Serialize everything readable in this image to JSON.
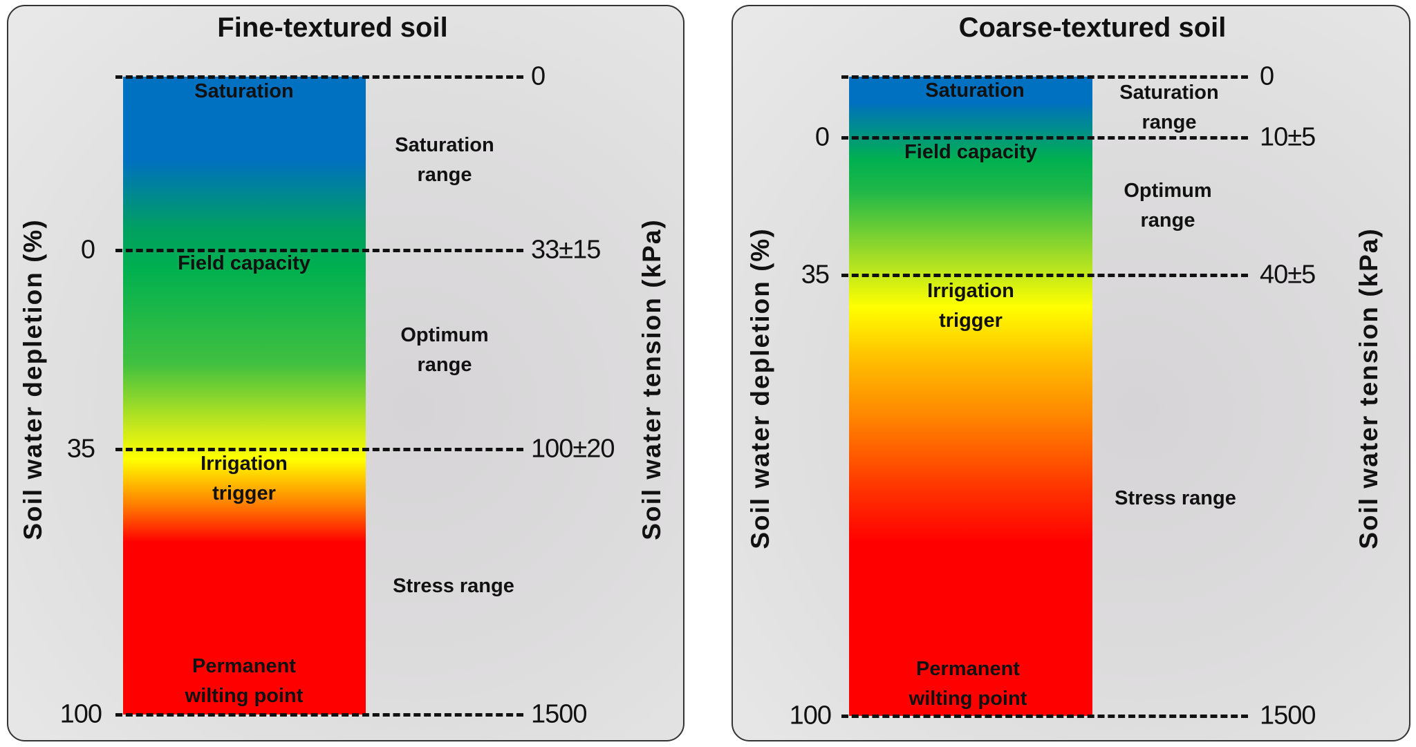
{
  "panels": [
    {
      "title": "Fine-textured soil",
      "left_axis_title": "Soil water depletion (%)",
      "right_axis_title": "Soil water tension (kPa)",
      "levels": [
        {
          "depletion": "",
          "tension": "0"
        },
        {
          "depletion": "0",
          "tension": "33±15"
        },
        {
          "depletion": "35",
          "tension": "100±20"
        },
        {
          "depletion": "100",
          "tension": "1500"
        }
      ],
      "bar_labels": {
        "saturation": "Saturation",
        "field_capacity": "Field capacity",
        "irrigation_1": "Irrigation",
        "irrigation_2": "trigger",
        "pwp_1": "Permanent",
        "pwp_2": "wilting point"
      },
      "range_labels": {
        "saturation_1": "Saturation",
        "saturation_2": "range",
        "optimum_1": "Optimum",
        "optimum_2": "range",
        "stress": "Stress range"
      }
    },
    {
      "title": "Coarse-textured soil",
      "left_axis_title": "Soil water depletion (%)",
      "right_axis_title": "Soil water tension (kPa)",
      "levels": [
        {
          "depletion": "",
          "tension": "0"
        },
        {
          "depletion": "0",
          "tension": "10±5"
        },
        {
          "depletion": "35",
          "tension": "40±5"
        },
        {
          "depletion": "100",
          "tension": "1500"
        }
      ],
      "bar_labels": {
        "saturation": "Saturation",
        "field_capacity": "Field capacity",
        "irrigation_1": "Irrigation",
        "irrigation_2": "trigger",
        "pwp_1": "Permanent",
        "pwp_2": "wilting point"
      },
      "range_labels": {
        "saturation_1": "Saturation",
        "saturation_2": "range",
        "optimum_1": "Optimum",
        "optimum_2": "range",
        "stress": "Stress range"
      }
    }
  ],
  "colors": {
    "saturation": "#0070c0",
    "field_capacity": "#00b050",
    "irrigation_trigger": "#ffff00",
    "wilting_point": "#ff0000"
  }
}
